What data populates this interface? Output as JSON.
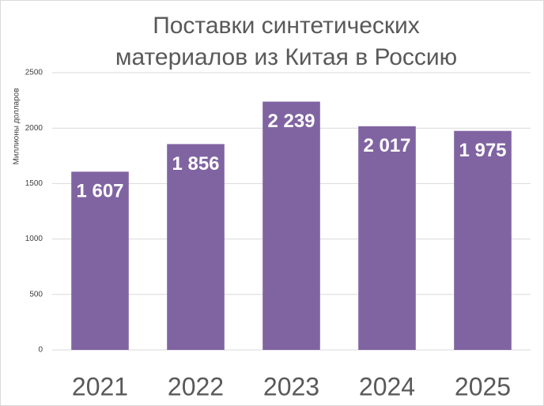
{
  "chart_data": {
    "type": "bar",
    "title": [
      "Поставки синтетических",
      "материалов из Китая в Россию"
    ],
    "y_label": "Миллионы долларов",
    "categories": [
      "2021",
      "2022",
      "2023",
      "2024",
      "2025"
    ],
    "values": [
      1607,
      1856,
      2239,
      2017,
      1975
    ],
    "value_labels": [
      "1 607",
      "1 856",
      "2 239",
      "2 017",
      "1 975"
    ],
    "color": "#8064a2",
    "ylim": [
      0,
      2500
    ],
    "yticks": [
      0,
      500,
      1000,
      1500,
      2000,
      2500
    ],
    "grid": true
  }
}
